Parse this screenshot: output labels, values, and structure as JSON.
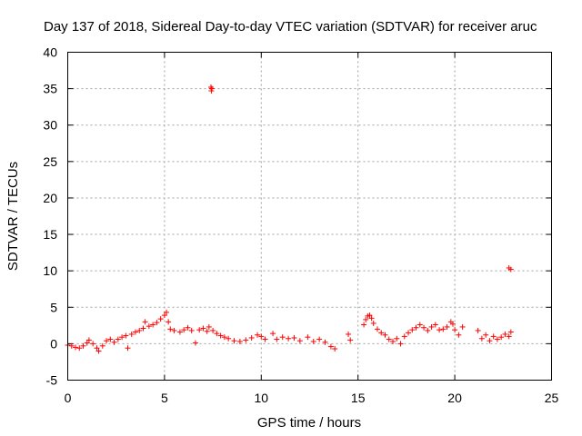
{
  "chart_data": {
    "type": "scatter",
    "title": "Day 137 of 2018, Sidereal Day-to-day VTEC variation (SDTVAR) for receiver aruc",
    "xlabel": "GPS time / hours",
    "ylabel": "SDTVAR / TECUs",
    "xlim": [
      0,
      25
    ],
    "ylim": [
      -5,
      40
    ],
    "xticks": [
      "0",
      "5",
      "10",
      "15",
      "20",
      "25"
    ],
    "yticks": [
      "-5",
      "0",
      "5",
      "10",
      "15",
      "20",
      "25",
      "30",
      "35",
      "40"
    ],
    "grid": true,
    "marker": "+",
    "marker_color": "#ff0000",
    "series": [
      {
        "name": "SDTVAR",
        "points": [
          [
            0.0,
            -0.2
          ],
          [
            0.2,
            -0.3
          ],
          [
            0.4,
            -0.5
          ],
          [
            0.6,
            -0.6
          ],
          [
            0.8,
            -0.3
          ],
          [
            1.0,
            0.1
          ],
          [
            1.1,
            0.5
          ],
          [
            1.3,
            0.0
          ],
          [
            1.5,
            -0.6
          ],
          [
            1.6,
            -1.0
          ],
          [
            1.8,
            -0.3
          ],
          [
            2.0,
            0.4
          ],
          [
            2.2,
            0.6
          ],
          [
            2.4,
            0.2
          ],
          [
            2.6,
            0.6
          ],
          [
            2.8,
            0.9
          ],
          [
            3.0,
            1.1
          ],
          [
            3.1,
            -0.6
          ],
          [
            3.3,
            1.3
          ],
          [
            3.5,
            1.6
          ],
          [
            3.7,
            1.8
          ],
          [
            3.9,
            2.1
          ],
          [
            4.0,
            3.0
          ],
          [
            4.2,
            2.4
          ],
          [
            4.4,
            2.6
          ],
          [
            4.6,
            2.9
          ],
          [
            4.8,
            3.4
          ],
          [
            5.0,
            3.9
          ],
          [
            5.1,
            4.3
          ],
          [
            5.2,
            3.0
          ],
          [
            5.3,
            2.0
          ],
          [
            5.5,
            1.8
          ],
          [
            5.8,
            1.6
          ],
          [
            6.0,
            1.9
          ],
          [
            6.2,
            2.2
          ],
          [
            6.4,
            1.8
          ],
          [
            6.6,
            0.1
          ],
          [
            6.8,
            1.9
          ],
          [
            7.0,
            2.1
          ],
          [
            7.2,
            1.7
          ],
          [
            7.3,
            2.3
          ],
          [
            7.5,
            1.8
          ],
          [
            7.7,
            1.4
          ],
          [
            7.9,
            1.1
          ],
          [
            8.1,
            0.9
          ],
          [
            8.3,
            0.7
          ],
          [
            8.6,
            0.4
          ],
          [
            8.9,
            0.3
          ],
          [
            9.2,
            0.5
          ],
          [
            9.5,
            0.8
          ],
          [
            9.8,
            1.2
          ],
          [
            10.0,
            1.0
          ],
          [
            10.2,
            0.6
          ],
          [
            10.6,
            1.4
          ],
          [
            10.8,
            0.6
          ],
          [
            11.1,
            0.9
          ],
          [
            11.4,
            0.7
          ],
          [
            11.7,
            0.8
          ],
          [
            12.0,
            0.4
          ],
          [
            12.4,
            0.9
          ],
          [
            12.7,
            0.3
          ],
          [
            13.0,
            0.6
          ],
          [
            13.3,
            0.2
          ],
          [
            13.6,
            -0.4
          ],
          [
            13.8,
            -0.7
          ],
          [
            14.5,
            1.3
          ],
          [
            14.6,
            0.5
          ],
          [
            15.3,
            2.6
          ],
          [
            15.4,
            3.3
          ],
          [
            15.5,
            3.8
          ],
          [
            15.6,
            3.9
          ],
          [
            15.7,
            3.5
          ],
          [
            15.8,
            2.8
          ],
          [
            16.0,
            2.0
          ],
          [
            16.2,
            1.5
          ],
          [
            16.4,
            1.2
          ],
          [
            16.6,
            0.6
          ],
          [
            16.8,
            0.3
          ],
          [
            17.0,
            0.7
          ],
          [
            17.2,
            0.0
          ],
          [
            17.4,
            1.0
          ],
          [
            17.6,
            1.5
          ],
          [
            17.8,
            1.9
          ],
          [
            18.0,
            2.2
          ],
          [
            18.2,
            2.6
          ],
          [
            18.4,
            2.2
          ],
          [
            18.6,
            1.8
          ],
          [
            18.8,
            2.3
          ],
          [
            19.0,
            2.6
          ],
          [
            19.2,
            1.9
          ],
          [
            19.4,
            2.0
          ],
          [
            19.6,
            2.3
          ],
          [
            19.8,
            3.0
          ],
          [
            19.9,
            2.7
          ],
          [
            20.0,
            1.9
          ],
          [
            20.2,
            1.2
          ],
          [
            20.4,
            2.3
          ],
          [
            21.2,
            1.8
          ],
          [
            21.4,
            0.7
          ],
          [
            21.6,
            1.2
          ],
          [
            21.8,
            0.4
          ],
          [
            22.0,
            1.0
          ],
          [
            22.2,
            0.6
          ],
          [
            22.4,
            0.9
          ],
          [
            22.6,
            1.3
          ],
          [
            22.8,
            1.0
          ],
          [
            22.9,
            1.6
          ],
          [
            7.4,
            35.2
          ],
          [
            7.42,
            34.7
          ],
          [
            7.45,
            35.0
          ],
          [
            22.8,
            10.4
          ],
          [
            22.9,
            10.2
          ]
        ]
      }
    ]
  }
}
